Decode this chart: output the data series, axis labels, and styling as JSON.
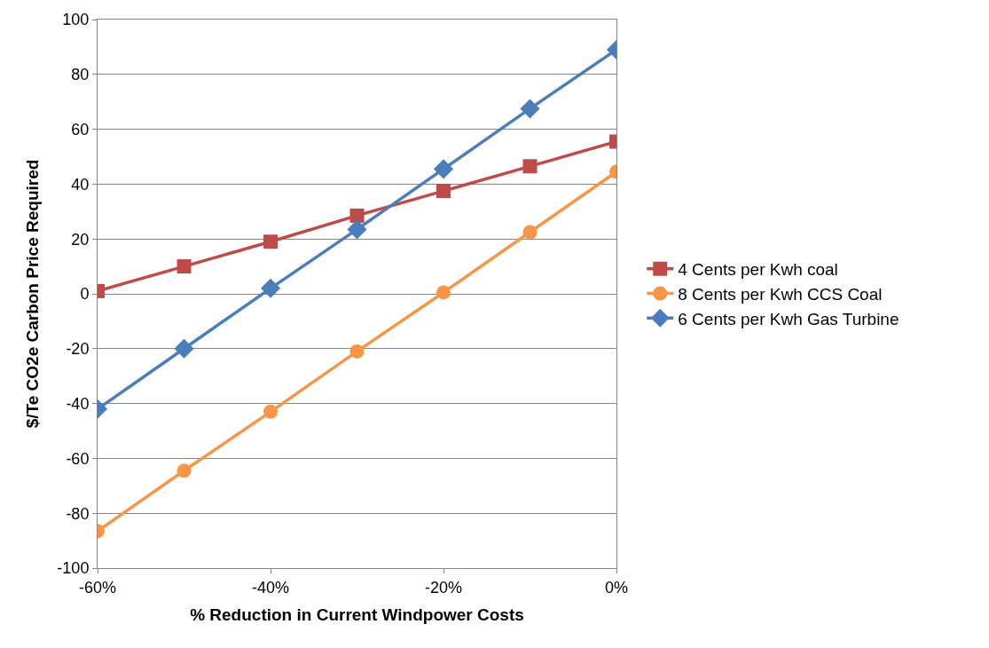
{
  "chart_data": {
    "type": "line",
    "xlabel": "% Reduction in Current Windpower Costs",
    "ylabel": "$/Te CO2e Carbon Price Required",
    "x": [
      -60,
      -50,
      -40,
      -30,
      -20,
      -10,
      0
    ],
    "xlim": [
      -60,
      0
    ],
    "xticks": [
      {
        "value": -60,
        "label": "-60%"
      },
      {
        "value": -40,
        "label": "-40%"
      },
      {
        "value": -20,
        "label": "-20%"
      },
      {
        "value": 0,
        "label": "0%"
      }
    ],
    "ylim": [
      -100,
      100
    ],
    "yticks": [
      -100,
      -80,
      -60,
      -40,
      -20,
      0,
      20,
      40,
      60,
      80,
      100
    ],
    "grid": "y",
    "legend": "right",
    "line_style": "solid",
    "series": [
      {
        "name": "4 Cents per Kwh coal",
        "color": "#be4b48",
        "marker": "square",
        "values": [
          1,
          10,
          19,
          28.5,
          37.5,
          46.5,
          55.5
        ]
      },
      {
        "name": "8 Cents per Kwh CCS Coal",
        "color": "#f79646",
        "marker": "circle",
        "values": [
          -86.5,
          -64.5,
          -43,
          -21,
          0.5,
          22.5,
          44.5
        ]
      },
      {
        "name": "6 Cents per Kwh Gas Turbine",
        "color": "#4a7ebb",
        "marker": "diamond",
        "values": [
          -42,
          -20,
          2,
          23.5,
          45.5,
          67.5,
          89
        ]
      }
    ]
  }
}
